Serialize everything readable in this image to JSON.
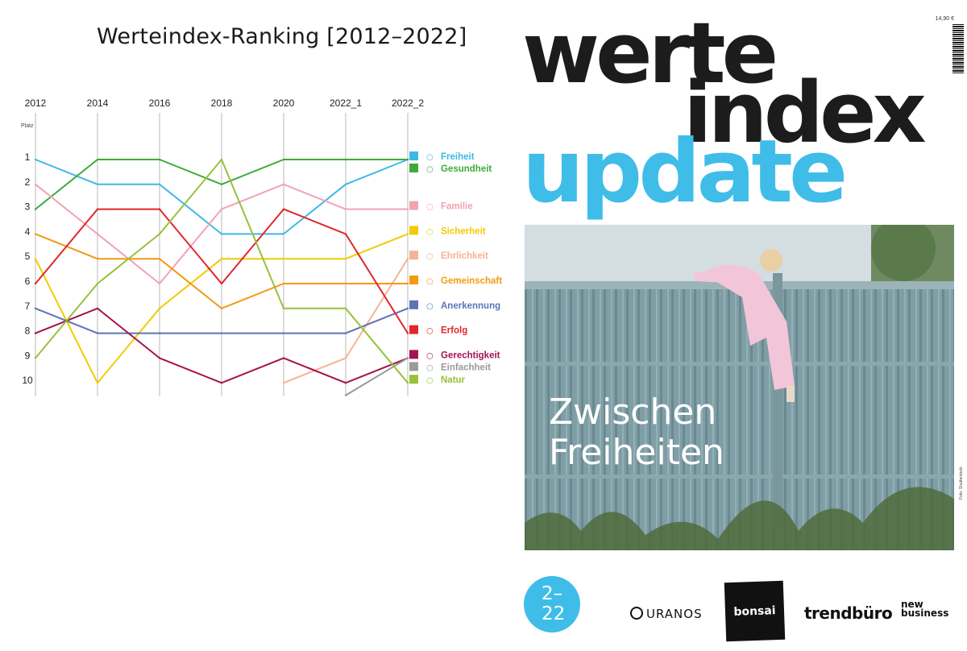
{
  "chart_title": "Werteindex-Ranking [2012–2022]",
  "chart_data": {
    "type": "line",
    "title": "Werteindex-Ranking [2012–2022]",
    "ylabel": "Platz",
    "x": [
      "2012",
      "2014",
      "2016",
      "2018",
      "2020",
      "2022_1",
      "2022_2"
    ],
    "y_ticks": [
      "1",
      "2",
      "3",
      "4",
      "5",
      "6",
      "7",
      "8",
      "9",
      "10"
    ],
    "ylim": [
      1,
      10
    ],
    "y_inverted": true,
    "grid": "vertical",
    "legend_position": "right",
    "series": [
      {
        "name": "Freiheit",
        "color": "#3db9e6",
        "icon": "flag-icon",
        "values": [
          1,
          2,
          2,
          4,
          4,
          2,
          1
        ]
      },
      {
        "name": "Gesundheit",
        "color": "#3faa3a",
        "icon": "heart-pulse-icon",
        "values": [
          3,
          1,
          1,
          2,
          1,
          1,
          1
        ]
      },
      {
        "name": "Familie",
        "color": "#f1a3b2",
        "icon": "family-icon",
        "values": [
          2,
          4,
          6,
          3,
          2,
          3,
          3
        ]
      },
      {
        "name": "Sicherheit",
        "color": "#f2cb00",
        "icon": "lock-icon",
        "values": [
          5,
          10,
          7,
          5,
          5,
          5,
          4
        ]
      },
      {
        "name": "Ehrlichkeit",
        "color": "#f6b293",
        "icon": "honesty-icon",
        "values": [
          null,
          null,
          null,
          null,
          10,
          9,
          5
        ]
      },
      {
        "name": "Gemeinschaft",
        "color": "#f29a12",
        "icon": "community-icon",
        "values": [
          4,
          5,
          5,
          7,
          6,
          6,
          6
        ]
      },
      {
        "name": "Anerkennung",
        "color": "#5b74b6",
        "icon": "thumbs-up-icon",
        "values": [
          7,
          8,
          8,
          8,
          8,
          8,
          7
        ]
      },
      {
        "name": "Erfolg",
        "color": "#e1262c",
        "icon": "trophy-icon",
        "values": [
          6,
          3,
          3,
          6,
          3,
          4,
          8
        ]
      },
      {
        "name": "Gerechtigkeit",
        "color": "#a5124f",
        "icon": "scales-icon",
        "values": [
          8,
          7,
          9,
          10,
          9,
          10,
          9
        ]
      },
      {
        "name": "Einfachheit",
        "color": "#9a9a9a",
        "icon": "simplicity-icon",
        "values": [
          null,
          null,
          null,
          null,
          null,
          10.5,
          9
        ]
      },
      {
        "name": "Natur",
        "color": "#98c13c",
        "icon": "nature-icon",
        "values": [
          9,
          6,
          4,
          1,
          7,
          7,
          10
        ]
      }
    ]
  },
  "masthead": {
    "line1": "werte",
    "line2": "index",
    "line3": "update"
  },
  "price": "14,90 €",
  "photo": {
    "caption_line1": "Zwischen",
    "caption_line2": "Freiheiten",
    "credit": "Foto: Shutterstock"
  },
  "issue": {
    "line1": "2–",
    "line2": "22"
  },
  "logos": {
    "uranos": "URANOS",
    "bonsai": "bonsai",
    "trendbuero": "trendbüro",
    "nb_line1": "new",
    "nb_line2": "business"
  },
  "colors": {
    "accent_blue": "#3fbde8",
    "dark": "#1c1c1c"
  }
}
